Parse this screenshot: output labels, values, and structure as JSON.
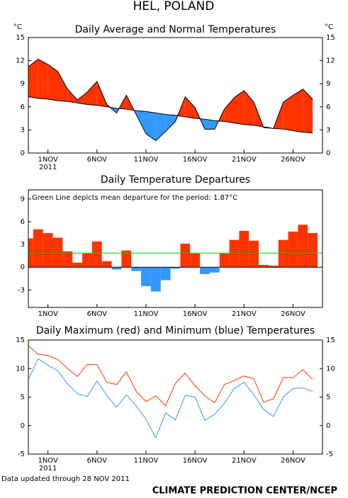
{
  "header": {
    "title": "HEL, POLAND"
  },
  "footer": {
    "updated": "Data updated through 28 NOV 2011",
    "credit": "CLIMATE PREDICTION CENTER/NCEP"
  },
  "chart_data": [
    {
      "type": "area_difference",
      "title": "Daily Average and Normal Temperatures",
      "y_unit": "°C",
      "right_axis": true,
      "x": [
        -1,
        0,
        1,
        2,
        3,
        4,
        5,
        6,
        7,
        8,
        9,
        10,
        11,
        12,
        13,
        14,
        15,
        16,
        17,
        18,
        19,
        20,
        21,
        22,
        23,
        24,
        25,
        26,
        27,
        28
      ],
      "xlim": [
        -1,
        29
      ],
      "xticks": [
        {
          "value": 1,
          "label": "1NOV"
        },
        {
          "value": 6,
          "label": "6NOV"
        },
        {
          "value": 11,
          "label": "11NOV"
        },
        {
          "value": 16,
          "label": "16NOV"
        },
        {
          "value": 21,
          "label": "21NOV"
        },
        {
          "value": 26,
          "label": "26NOV"
        }
      ],
      "x_year": "2011",
      "ylim": [
        0,
        15
      ],
      "yticks": [
        0,
        3,
        6,
        9,
        12,
        15
      ],
      "above_color": "#ff3300",
      "below_color": "#3399ff",
      "line_color": "#000000",
      "series": [
        {
          "values": [
            11.2,
            12.2,
            11.5,
            10.6,
            8.3,
            6.9,
            7.9,
            9.3,
            6.3,
            5.2,
            7.5,
            5.0,
            2.5,
            1.6,
            2.8,
            4.1,
            7.3,
            5.9,
            3.1,
            3.1,
            5.7,
            7.2,
            8.1,
            6.6,
            3.3,
            3.2,
            6.6,
            7.5,
            8.3,
            7.0
          ]
        },
        {
          "values": [
            7.3,
            7.1,
            7.0,
            6.8,
            6.7,
            6.5,
            6.3,
            6.2,
            6.0,
            5.8,
            5.7,
            5.5,
            5.4,
            5.2,
            5.0,
            4.9,
            4.7,
            4.5,
            4.4,
            4.2,
            4.1,
            3.9,
            3.7,
            3.6,
            3.4,
            3.2,
            3.1,
            2.9,
            2.7,
            2.6
          ]
        }
      ]
    },
    {
      "type": "bar",
      "title": "Daily Temperature Departures",
      "x": [
        -1,
        0,
        1,
        2,
        3,
        4,
        5,
        6,
        7,
        8,
        9,
        10,
        11,
        12,
        13,
        14,
        15,
        16,
        17,
        18,
        19,
        20,
        21,
        22,
        23,
        24,
        25,
        26,
        27,
        28
      ],
      "xlim": [
        -1,
        29
      ],
      "xticks": [
        {
          "value": 1,
          "label": "1NOV"
        },
        {
          "value": 6,
          "label": "6NOV"
        },
        {
          "value": 11,
          "label": "11NOV"
        },
        {
          "value": 16,
          "label": "16NOV"
        },
        {
          "value": 21,
          "label": "21NOV"
        },
        {
          "value": 26,
          "label": "26NOV"
        }
      ],
      "ylim": [
        -5.3,
        10.2
      ],
      "yticks": [
        -3,
        0,
        3,
        6,
        9
      ],
      "values": [
        3.8,
        5.0,
        4.5,
        3.9,
        2.1,
        0.6,
        1.8,
        3.4,
        0.8,
        -0.3,
        2.2,
        -0.5,
        -2.5,
        -3.2,
        -1.7,
        -0.2,
        3.1,
        1.8,
        -0.9,
        -0.7,
        1.8,
        3.6,
        4.8,
        3.5,
        0.3,
        0.2,
        3.6,
        4.7,
        5.6,
        4.5
      ],
      "pos_color": "#ff3300",
      "neg_color": "#3399ff",
      "mean_departure": 1.87,
      "mean_color": "#00cc00",
      "annotation": "Green Line depicts mean departure for the period: 1.87°C"
    },
    {
      "type": "line",
      "title": "Daily Maximum (red) and Minimum (blue) Temperatures",
      "right_axis": true,
      "x": [
        -1,
        0,
        1,
        2,
        3,
        4,
        5,
        6,
        7,
        8,
        9,
        10,
        11,
        12,
        13,
        14,
        15,
        16,
        17,
        18,
        19,
        20,
        21,
        22,
        23,
        24,
        25,
        26,
        27,
        28
      ],
      "xlim": [
        -1,
        29
      ],
      "xticks": [
        {
          "value": 1,
          "label": "1NOV"
        },
        {
          "value": 6,
          "label": "6NOV"
        },
        {
          "value": 11,
          "label": "11NOV"
        },
        {
          "value": 16,
          "label": "16NOV"
        },
        {
          "value": 21,
          "label": "21NOV"
        },
        {
          "value": 26,
          "label": "26NOV"
        }
      ],
      "x_year": "2011",
      "ylim": [
        -5,
        15
      ],
      "yticks": [
        -5,
        0,
        5,
        10,
        15
      ],
      "series": [
        {
          "color": "#ff3300",
          "values": [
            14.0,
            12.5,
            12.3,
            11.6,
            10.0,
            8.6,
            10.7,
            10.7,
            7.6,
            7.2,
            9.4,
            6.0,
            4.2,
            5.2,
            3.5,
            7.4,
            9.2,
            7.0,
            5.2,
            4.0,
            7.2,
            7.9,
            8.7,
            8.2,
            4.1,
            4.7,
            8.4,
            8.4,
            9.8,
            8.1
          ]
        },
        {
          "color": "#3399ff",
          "values": [
            8.1,
            11.7,
            10.6,
            9.6,
            7.3,
            5.6,
            5.1,
            7.8,
            5.3,
            3.2,
            5.4,
            3.5,
            1.1,
            -2.1,
            2.2,
            1.0,
            5.3,
            5.0,
            0.9,
            2.0,
            3.9,
            6.5,
            7.6,
            5.4,
            2.8,
            1.6,
            5.0,
            6.5,
            6.6,
            6.0
          ]
        }
      ]
    }
  ]
}
